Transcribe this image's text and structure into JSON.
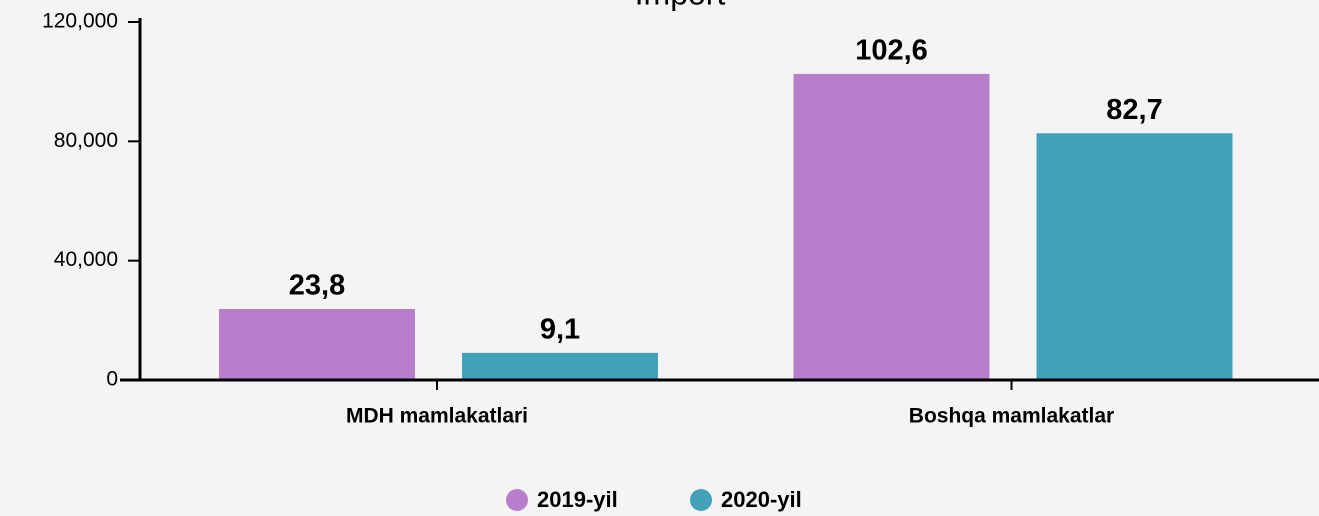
{
  "chart_data": {
    "type": "bar",
    "title": "Import",
    "categories": [
      "MDH mamlakatlari",
      "Boshqa mamlakatlar"
    ],
    "series": [
      {
        "name": "2019-yil",
        "color": "#b87ecc",
        "values": [
          23800,
          102600
        ],
        "value_labels": [
          "23,8",
          "102,6"
        ]
      },
      {
        "name": "2020-yil",
        "color": "#43a0b9",
        "values": [
          9100,
          82700
        ],
        "value_labels": [
          "9,1",
          "82,7"
        ]
      }
    ],
    "ylim": [
      0,
      120000
    ],
    "yticks": [
      0,
      {
        "value": 40000,
        "label": "40,000"
      },
      {
        "value": 80000,
        "label": "80,000"
      },
      {
        "value": 120000,
        "label": "120,000"
      }
    ],
    "legend": "bottom"
  }
}
